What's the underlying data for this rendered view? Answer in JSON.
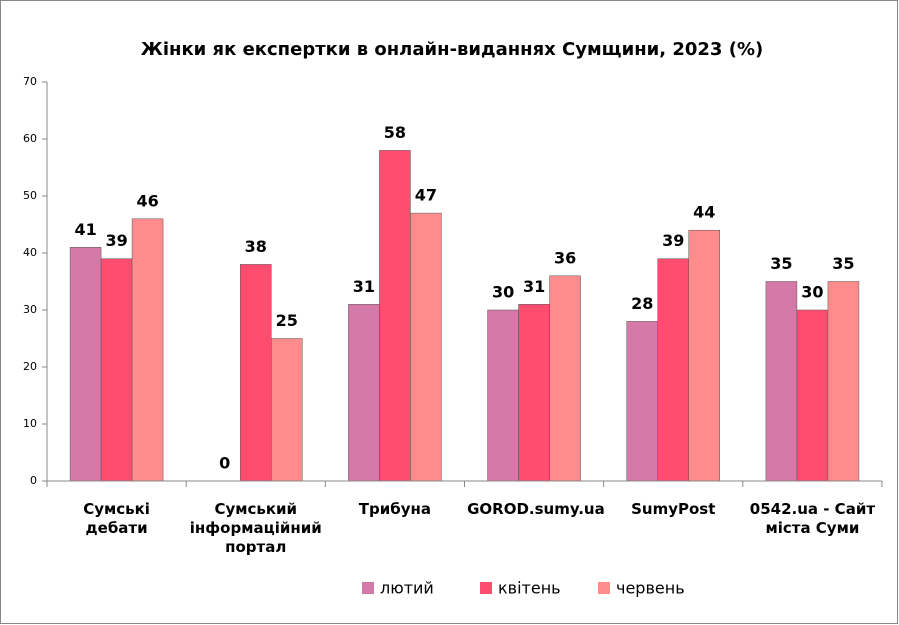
{
  "chart_data": {
    "type": "bar",
    "title": "Жінки як експертки в онлайн-виданнях Сумщини, 2023 (%)",
    "categories": [
      "Сумські дебати",
      "Сумський інформаційний портал",
      "Трибуна",
      "GOROD.sumy.ua",
      "SumyPost",
      "0542.ua - Сайт міста Суми"
    ],
    "series": [
      {
        "name": "лютий",
        "color": "#d57aa8",
        "values": [
          41,
          0,
          31,
          30,
          28,
          35
        ]
      },
      {
        "name": "квітень",
        "color": "#ff4d70",
        "values": [
          39,
          38,
          58,
          31,
          39,
          30
        ]
      },
      {
        "name": "червень",
        "color": "#ff8c8c",
        "values": [
          46,
          25,
          47,
          36,
          44,
          35
        ]
      }
    ],
    "ylim": [
      0,
      70
    ],
    "yticks": [
      0,
      10,
      20,
      30,
      40,
      50,
      60,
      70
    ],
    "legend": "bottom"
  }
}
